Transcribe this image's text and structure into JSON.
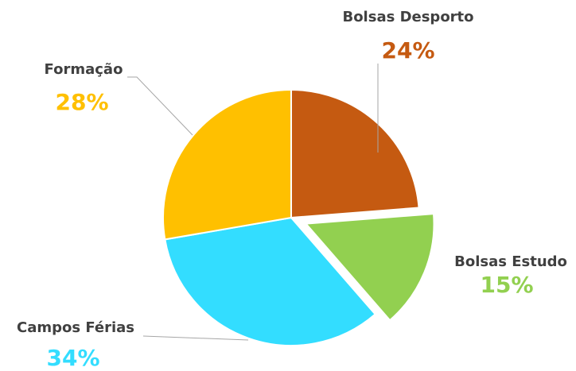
{
  "chart_data": {
    "type": "pie",
    "categories": [
      "Bolsas Desporto",
      "Bolsas Estudo",
      "Campos Férias",
      "Formação"
    ],
    "values": [
      24,
      15,
      34,
      28
    ],
    "value_labels": [
      "24%",
      "15%",
      "34%",
      "28%"
    ],
    "colors": [
      "#C55A11",
      "#92D050",
      "#33DDFF",
      "#FFC000"
    ],
    "explode": [
      false,
      true,
      false,
      false
    ]
  }
}
